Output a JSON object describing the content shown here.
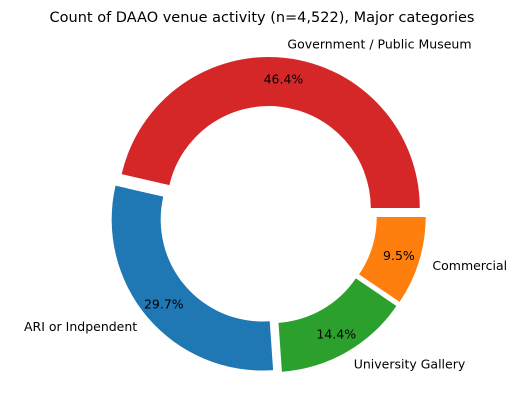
{
  "chart_data": {
    "type": "pie",
    "style": "donut",
    "title": "Count of DAAO venue activity (n=4,522), Major categories",
    "slices": [
      {
        "label": "Government / Public Museum",
        "value": 46.4,
        "pct_label": "46.4%",
        "color": "#d62728"
      },
      {
        "label": "ARI or Indpendent",
        "value": 29.7,
        "pct_label": "29.7%",
        "color": "#1f77b4"
      },
      {
        "label": "University Gallery",
        "value": 14.4,
        "pct_label": "14.4%",
        "color": "#2ca02c"
      },
      {
        "label": "Commercial",
        "value": 9.5,
        "pct_label": "9.5%",
        "color": "#ff7f0e"
      }
    ],
    "start_angle_deg": 0,
    "direction": "counterclockwise",
    "exploded": true
  }
}
